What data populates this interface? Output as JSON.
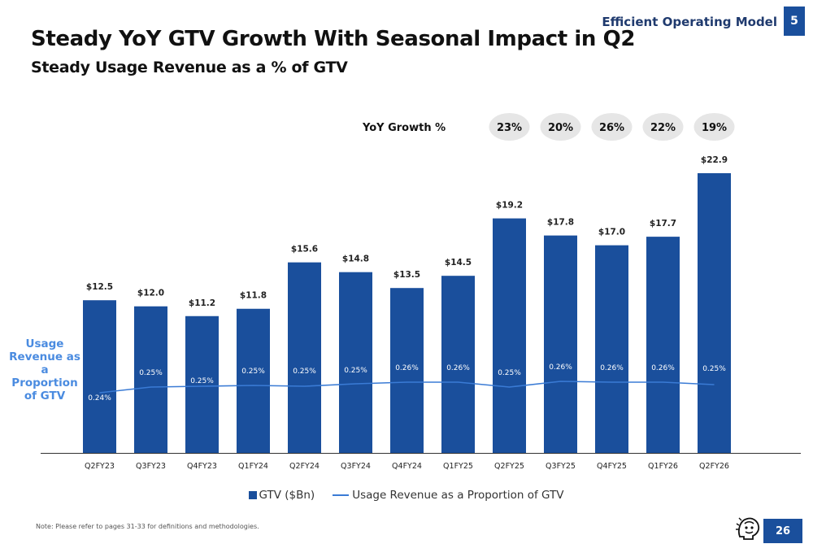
{
  "header": {
    "title": "Steady YoY GTV Growth With Seasonal Impact in Q2",
    "subtitle": "Steady Usage Revenue as a % of GTV",
    "section": "Efficient Operating Model",
    "section_number": "5"
  },
  "growth": {
    "label": "YoY Growth %",
    "values": [
      "23%",
      "20%",
      "26%",
      "22%",
      "19%"
    ]
  },
  "side_label": "Usage Revenue as a Proportion of GTV",
  "legend": {
    "bar_label": "GTV ($Bn)",
    "line_label": "Usage Revenue as a Proportion of GTV"
  },
  "note": "Note: Please refer to pages 31-33 for definitions and methodologies.",
  "page_number": "26",
  "colors": {
    "bar": "#1a4f9c",
    "line": "#3a7bd5",
    "side_label": "#4a8be0",
    "growth_pill": "#e6e6e6"
  },
  "icons": {
    "logo": "brand-logo-icon"
  },
  "chart_data": {
    "type": "bar",
    "categories": [
      "Q2FY23",
      "Q3FY23",
      "Q4FY23",
      "Q1FY24",
      "Q2FY24",
      "Q3FY24",
      "Q4FY24",
      "Q1FY25",
      "Q2FY25",
      "Q3FY25",
      "Q4FY25",
      "Q1FY26",
      "Q2FY26"
    ],
    "series": [
      {
        "name": "GTV ($Bn)",
        "type": "bar",
        "values": [
          12.5,
          12.0,
          11.2,
          11.8,
          15.6,
          14.8,
          13.5,
          14.5,
          19.2,
          17.8,
          17.0,
          17.7,
          22.9
        ],
        "labels": [
          "$12.5",
          "$12.0",
          "$11.2",
          "$11.8",
          "$15.6",
          "$14.8",
          "$13.5",
          "$14.5",
          "$19.2",
          "$17.8",
          "$17.0",
          "$17.7",
          "$22.9"
        ]
      },
      {
        "name": "Usage Revenue as a Proportion of GTV",
        "type": "line",
        "values": [
          0.24,
          0.25,
          0.25,
          0.25,
          0.25,
          0.25,
          0.26,
          0.26,
          0.25,
          0.26,
          0.26,
          0.26,
          0.25
        ],
        "labels": [
          "0.24%",
          "0.25%",
          "0.25%",
          "0.25%",
          "0.25%",
          "0.25%",
          "0.26%",
          "0.26%",
          "0.25%",
          "0.26%",
          "0.26%",
          "0.26%",
          "0.25%"
        ]
      }
    ],
    "growth_categories": [
      "Q2FY25",
      "Q3FY25",
      "Q4FY25",
      "Q1FY26",
      "Q2FY26"
    ],
    "ylim": [
      0,
      23
    ],
    "legend_position": "bottom",
    "grid": false,
    "title": "",
    "xlabel": "",
    "ylabel": ""
  }
}
